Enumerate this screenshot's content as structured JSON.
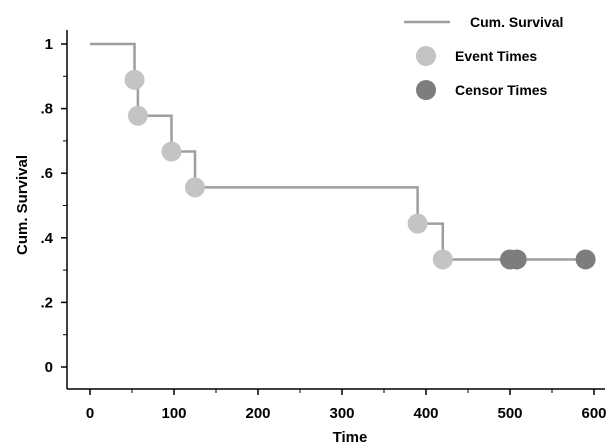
{
  "chart_data": {
    "type": "line",
    "title": "",
    "xlabel": "Time",
    "ylabel": "Cum. Survival",
    "xlim": [
      0,
      600
    ],
    "ylim": [
      0,
      1
    ],
    "x_ticks": [
      0,
      100,
      200,
      300,
      400,
      500,
      600
    ],
    "x_tick_labels": [
      "0",
      "100",
      "200",
      "300",
      "400",
      "500",
      "600"
    ],
    "y_ticks": [
      0,
      0.2,
      0.4,
      0.6,
      0.8,
      1
    ],
    "y_tick_labels": [
      "0",
      ".2",
      ".4",
      ".6",
      ".8",
      "1"
    ],
    "grid": false,
    "legend": {
      "position": "top-right",
      "entries": [
        {
          "label": "Cum. Survival",
          "marker": "line",
          "color": "#9e9e9e"
        },
        {
          "label": "Event Times",
          "marker": "circle",
          "color": "#c4c4c4"
        },
        {
          "label": "Censor Times",
          "marker": "circle",
          "color": "#7d7d7d"
        }
      ]
    },
    "series": [
      {
        "name": "Cum. Survival",
        "type": "step",
        "color": "#9e9e9e",
        "x": [
          0,
          53,
          57,
          97,
          125,
          390,
          420,
          500,
          508,
          590
        ],
        "y": [
          1.0,
          0.889,
          0.778,
          0.667,
          0.556,
          0.444,
          0.333,
          0.333,
          0.333,
          0.333
        ]
      },
      {
        "name": "Event Times",
        "type": "scatter",
        "color": "#c4c4c4",
        "x": [
          53,
          57,
          97,
          125,
          390,
          420
        ],
        "y": [
          0.889,
          0.778,
          0.667,
          0.556,
          0.444,
          0.333
        ]
      },
      {
        "name": "Censor Times",
        "type": "scatter",
        "color": "#7d7d7d",
        "x": [
          500,
          508,
          590
        ],
        "y": [
          0.333,
          0.333,
          0.333
        ]
      }
    ]
  }
}
